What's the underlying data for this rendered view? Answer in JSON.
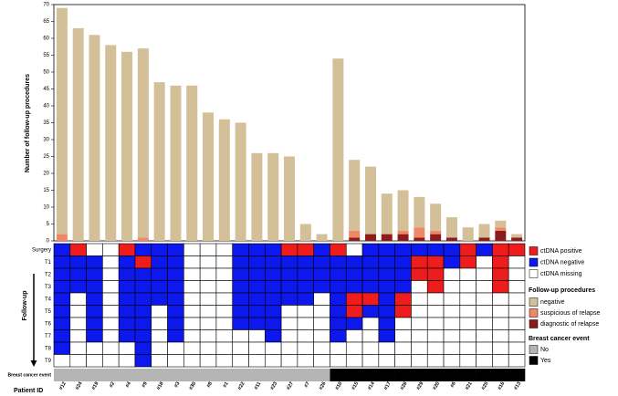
{
  "chart_data": [
    {
      "type": "bar",
      "stacked": true,
      "ylabel": "Number of follow-up procedures",
      "xlabel": "Patient ID",
      "categories": [
        "#12",
        "#24",
        "#19",
        "#2",
        "#4",
        "#9",
        "#18",
        "#3",
        "#30",
        "#8",
        "#1",
        "#22",
        "#11",
        "#23",
        "#27",
        "#7",
        "#26",
        "#10",
        "#15",
        "#14",
        "#17",
        "#28",
        "#29",
        "#20",
        "#6",
        "#21",
        "#25",
        "#16",
        "#13"
      ],
      "legend_title": "Follow-up procedures",
      "series": [
        {
          "name": "negative",
          "color": "#d3bf98",
          "values": [
            67,
            63,
            61,
            58,
            56,
            56,
            47,
            46,
            46,
            38,
            36,
            35,
            26,
            26,
            25,
            5,
            2,
            54,
            21,
            20,
            12,
            12,
            9,
            8,
            6,
            4,
            4,
            2,
            1
          ]
        },
        {
          "name": "suspicious of relapse",
          "color": "#f08868",
          "values": [
            2,
            0,
            0,
            0,
            0,
            1,
            0,
            0,
            0,
            0,
            0,
            0,
            0,
            0,
            0,
            0,
            0,
            0,
            2,
            0,
            0,
            1,
            3,
            1,
            0,
            0,
            0,
            1,
            0
          ]
        },
        {
          "name": "diagnostic of relapse",
          "color": "#8e1b1b",
          "values": [
            0,
            0,
            0,
            0,
            0,
            0,
            0,
            0,
            0,
            0,
            0,
            0,
            0,
            0,
            0,
            0,
            0,
            0,
            1,
            2,
            2,
            2,
            1,
            2,
            1,
            0,
            1,
            3,
            1
          ]
        }
      ],
      "ylim": [
        0,
        70
      ],
      "yticks": [
        0,
        5,
        10,
        15,
        20,
        25,
        30,
        35,
        40,
        45,
        50,
        55,
        60,
        65,
        70
      ]
    },
    {
      "type": "heatmap",
      "ylabel": "Follow-up",
      "rows": [
        "Surgery",
        "T1",
        "T2",
        "T3",
        "T4",
        "T5",
        "T6",
        "T7",
        "T8",
        "T9"
      ],
      "legend": [
        {
          "name": "ctDNA positive",
          "color": "#ee1c1c"
        },
        {
          "name": "ctDNA negative",
          "color": "#0c18ec"
        },
        {
          "name": "ctDNA missing",
          "color": "#ffffff"
        }
      ],
      "values": [
        [
          1,
          0,
          2,
          2,
          0,
          1,
          1,
          1,
          2,
          2,
          2,
          1,
          1,
          1,
          0,
          0,
          1,
          0,
          2,
          1,
          1,
          1,
          1,
          1,
          1,
          0,
          1,
          0,
          0
        ],
        [
          1,
          1,
          1,
          2,
          1,
          0,
          1,
          1,
          2,
          2,
          2,
          1,
          1,
          1,
          1,
          1,
          1,
          1,
          1,
          1,
          1,
          1,
          0,
          0,
          1,
          0,
          2,
          0,
          2
        ],
        [
          1,
          1,
          1,
          2,
          1,
          1,
          1,
          1,
          2,
          2,
          2,
          1,
          1,
          1,
          1,
          1,
          1,
          1,
          1,
          1,
          1,
          1,
          0,
          0,
          2,
          2,
          2,
          0,
          2
        ],
        [
          1,
          1,
          1,
          2,
          1,
          1,
          1,
          1,
          2,
          2,
          2,
          1,
          1,
          1,
          1,
          1,
          1,
          1,
          1,
          1,
          1,
          1,
          2,
          0,
          2,
          2,
          2,
          0,
          2
        ],
        [
          1,
          2,
          1,
          2,
          1,
          1,
          1,
          1,
          2,
          2,
          2,
          1,
          1,
          1,
          1,
          1,
          2,
          1,
          0,
          0,
          1,
          0,
          2,
          2,
          2,
          2,
          2,
          2,
          2
        ],
        [
          1,
          2,
          1,
          2,
          1,
          1,
          2,
          1,
          2,
          2,
          2,
          1,
          1,
          1,
          2,
          2,
          2,
          1,
          0,
          1,
          1,
          0,
          2,
          2,
          2,
          2,
          2,
          2,
          2
        ],
        [
          1,
          2,
          1,
          2,
          1,
          1,
          2,
          1,
          2,
          2,
          2,
          1,
          1,
          1,
          2,
          2,
          2,
          1,
          1,
          2,
          1,
          2,
          2,
          2,
          2,
          2,
          2,
          2,
          2
        ],
        [
          1,
          2,
          1,
          2,
          1,
          1,
          2,
          1,
          2,
          2,
          2,
          2,
          2,
          1,
          2,
          2,
          2,
          1,
          2,
          2,
          1,
          2,
          2,
          2,
          2,
          2,
          2,
          2,
          2
        ],
        [
          1,
          2,
          2,
          2,
          2,
          1,
          2,
          2,
          2,
          2,
          2,
          2,
          2,
          2,
          2,
          2,
          2,
          2,
          2,
          2,
          2,
          2,
          2,
          2,
          2,
          2,
          2,
          2,
          2
        ],
        [
          2,
          2,
          2,
          2,
          2,
          1,
          2,
          2,
          2,
          2,
          2,
          2,
          2,
          2,
          2,
          2,
          2,
          2,
          2,
          2,
          2,
          2,
          2,
          2,
          2,
          2,
          2,
          2,
          2
        ]
      ],
      "event_label": "Breast cancer event",
      "event_legend_title": "Breast cancer event",
      "event_legend": [
        {
          "name": "No",
          "color": "#b5b5b5"
        },
        {
          "name": "Yes",
          "color": "#000000"
        }
      ],
      "events": [
        0,
        0,
        0,
        0,
        0,
        0,
        0,
        0,
        0,
        0,
        0,
        0,
        0,
        0,
        0,
        0,
        0,
        1,
        1,
        1,
        1,
        1,
        1,
        1,
        1,
        1,
        1,
        1,
        1
      ]
    }
  ]
}
